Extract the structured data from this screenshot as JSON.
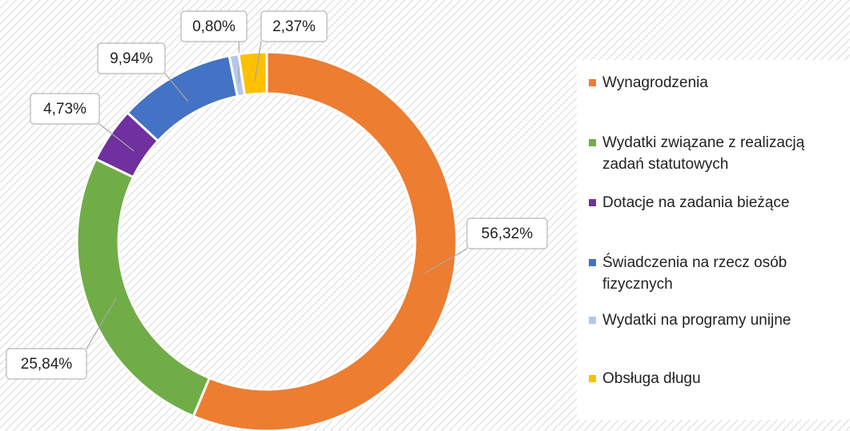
{
  "chart_data": {
    "type": "donut",
    "categories": [
      "Wynagrodzenia",
      "Wydatki związane z realizacją zadań statutowych",
      "Dotacje na zadania bieżące",
      "Świadczenia na rzecz osób fizycznych",
      "Wydatki na programy unijne",
      "Obsługa długu"
    ],
    "values": [
      56.32,
      25.84,
      4.73,
      9.94,
      0.8,
      2.37
    ],
    "value_labels": [
      "56,32%",
      "25,84%",
      "4,73%",
      "9,94%",
      "0,80%",
      "2,37%"
    ],
    "colors": [
      "#ED7D31",
      "#70AD47",
      "#7030A0",
      "#4472C4",
      "#B4C7E7",
      "#FFC000"
    ],
    "legend": "right"
  }
}
